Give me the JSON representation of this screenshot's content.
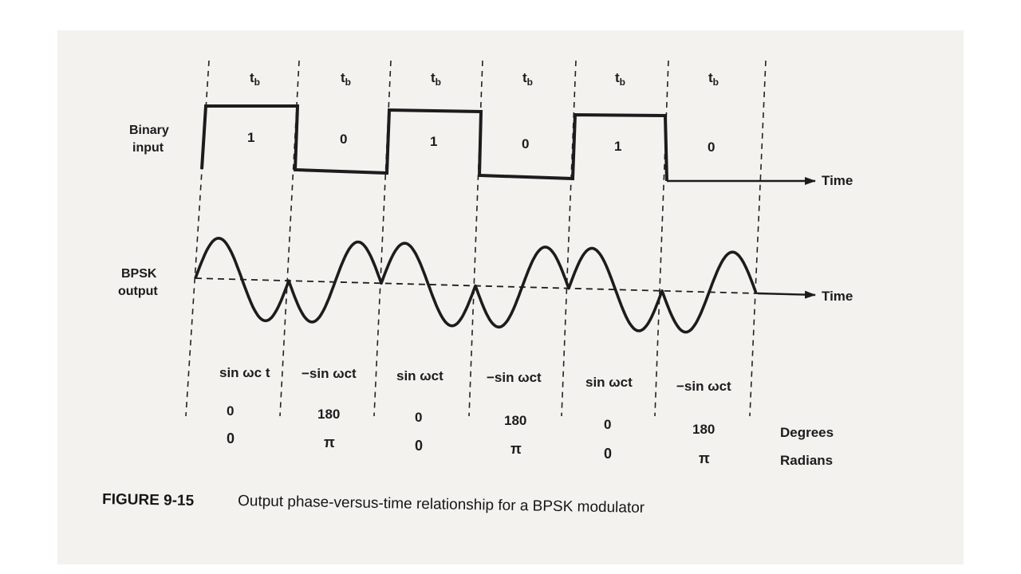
{
  "bit_period_label": "t",
  "bit_period_sub": "b",
  "binary_input": {
    "label_line1": "Binary",
    "label_line2": "input",
    "bits": [
      "1",
      "0",
      "1",
      "0",
      "1",
      "0"
    ]
  },
  "bpsk_output": {
    "label_line1": "BPSK",
    "label_line2": "output"
  },
  "time_label": "Time",
  "phase_rows": {
    "expressions": [
      "sin ωc t",
      "−sin ωct",
      "sin ωct",
      "−sin ωct",
      "sin ωct",
      "−sin ωct"
    ],
    "degrees": [
      "0",
      "180",
      "0",
      "180",
      "0",
      "180"
    ],
    "radians": [
      "0",
      "π",
      "0",
      "π",
      "0",
      "π"
    ],
    "degrees_label": "Degrees",
    "radians_label": "Radians"
  },
  "caption": {
    "number": "FIGURE 9-15",
    "text": "Output phase-versus-time relationship for a BPSK modulator"
  },
  "colors": {
    "ink": "#1c1c1c",
    "paper": "#f3f2ef"
  }
}
